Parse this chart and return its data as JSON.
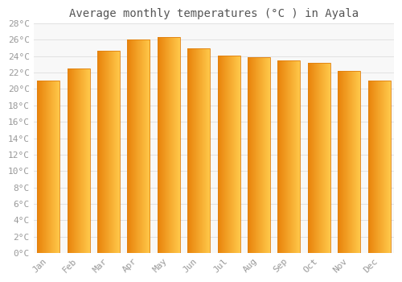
{
  "title": "Average monthly temperatures (°C ) in Ayala",
  "months": [
    "Jan",
    "Feb",
    "Mar",
    "Apr",
    "May",
    "Jun",
    "Jul",
    "Aug",
    "Sep",
    "Oct",
    "Nov",
    "Dec"
  ],
  "temperatures": [
    21.0,
    22.5,
    24.7,
    26.0,
    26.3,
    25.0,
    24.1,
    23.9,
    23.5,
    23.2,
    22.2,
    21.0
  ],
  "bar_color_left": "#E8820A",
  "bar_color_right": "#FFC84A",
  "bar_color_mid": "#F5A623",
  "bar_edge_color": "#E08010",
  "ylim": [
    0,
    28
  ],
  "ytick_step": 2,
  "background_color": "#FFFFFF",
  "plot_bg_color": "#F8F8F8",
  "grid_color": "#DDDDDD",
  "title_fontsize": 10,
  "tick_fontsize": 8,
  "label_color": "#999999",
  "title_color": "#555555",
  "font_family": "monospace",
  "bar_width": 0.75
}
